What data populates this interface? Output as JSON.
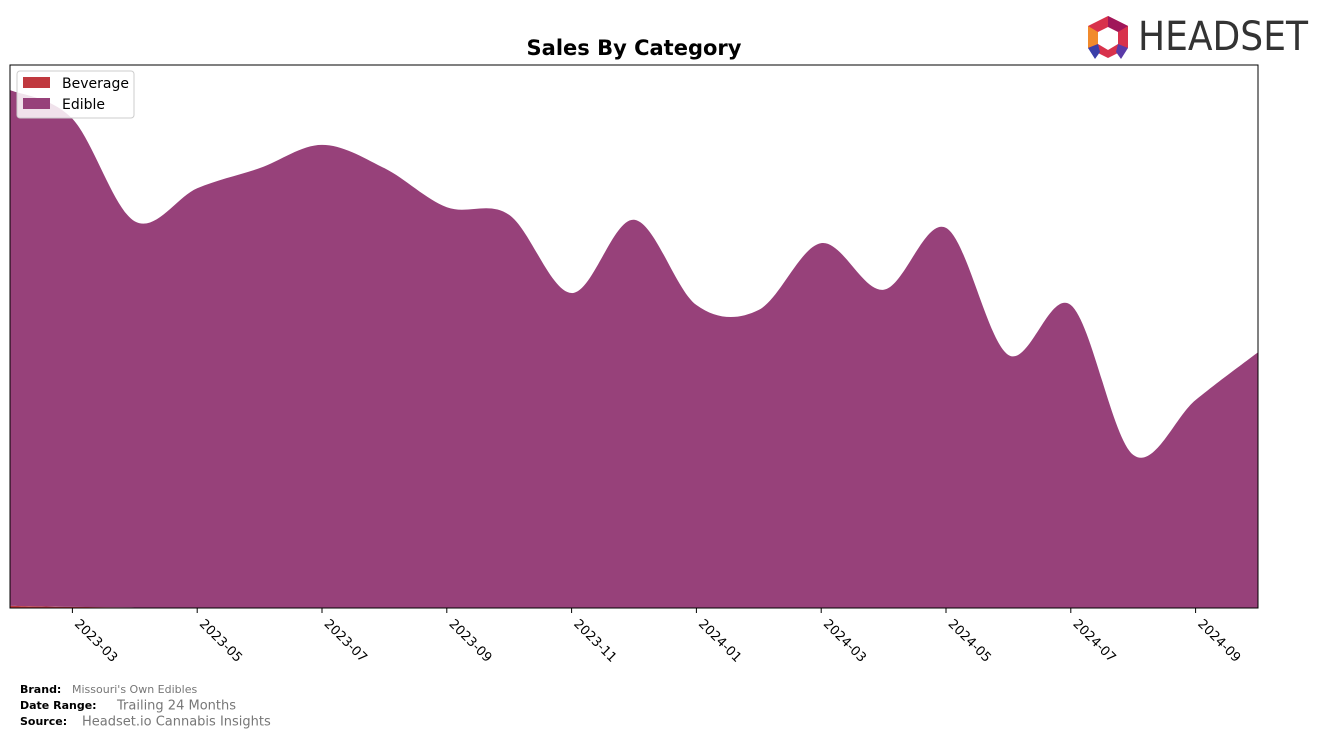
{
  "logo": "HEADSET",
  "chart_data": {
    "type": "stacked-area",
    "title": "Sales By Category",
    "x": [
      "2023-02",
      "2023-03",
      "2023-04",
      "2023-05",
      "2023-06",
      "2023-07",
      "2023-08",
      "2023-09",
      "2023-10",
      "2023-11",
      "2023-12",
      "2024-01",
      "2024-02",
      "2024-03",
      "2024-04",
      "2024-05",
      "2024-06",
      "2024-07",
      "2024-08",
      "2024-09",
      "2024-10"
    ],
    "series": [
      {
        "name": "Beverage",
        "color": "#c0393f",
        "values": [
          0.4,
          0.2,
          0.1,
          0,
          0,
          0,
          0,
          0,
          0,
          0,
          0,
          0,
          0,
          0,
          0,
          0,
          0,
          0,
          0,
          0,
          0
        ]
      },
      {
        "name": "Edible",
        "color": "#97417a",
        "values": [
          95.0,
          89.9,
          71.1,
          77.3,
          81.0,
          85.3,
          81.0,
          73.8,
          72.4,
          58.0,
          71.5,
          55.8,
          54.9,
          67.2,
          58.6,
          70.0,
          46.6,
          55.8,
          28.2,
          38.3,
          47.1
        ]
      }
    ],
    "xlim": [
      "2023-02",
      "2024-10"
    ],
    "xticks": [
      "2023-03",
      "2023-05",
      "2023-07",
      "2023-09",
      "2023-11",
      "2024-01",
      "2024-03",
      "2024-05",
      "2024-07",
      "2024-09"
    ],
    "ylim": [
      0,
      100
    ],
    "legend": "upper left"
  },
  "footer": [
    {
      "label": "Brand:",
      "value": "Missouri's Own Edibles"
    },
    {
      "label": "Date Range:",
      "value": "Trailing 24 Months"
    },
    {
      "label": "Source:",
      "value": "Headset.io Cannabis Insights"
    }
  ]
}
